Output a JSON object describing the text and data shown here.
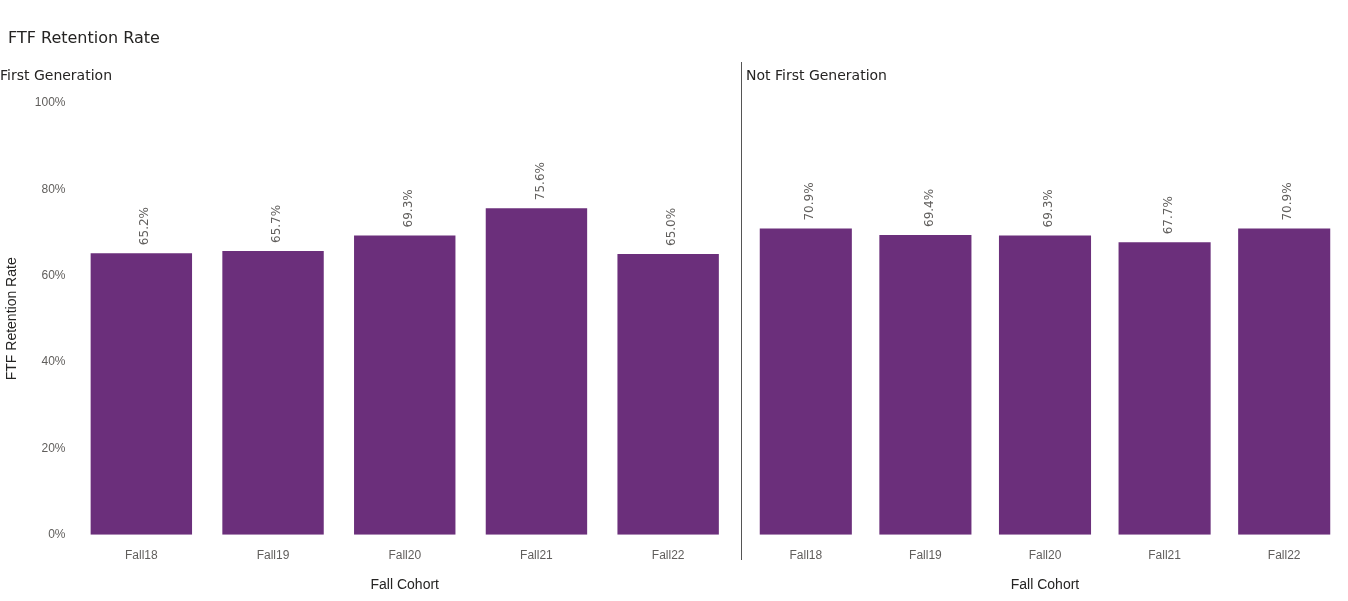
{
  "chart_data": [
    {
      "type": "bar",
      "title": "First Generation",
      "annotations": [
        "FTF Retention Rate"
      ],
      "xlabel": "Fall Cohort",
      "ylabel": "FTF Retention Rate",
      "categories": [
        "Fall18",
        "Fall19",
        "Fall20",
        "Fall21",
        "Fall22"
      ],
      "values": [
        65.2,
        65.7,
        69.3,
        75.6,
        65.0
      ],
      "value_labels": [
        "65.2%",
        "65.7%",
        "69.3%",
        "75.6%",
        "65.0%"
      ],
      "color": "#6b2f7b",
      "ylim": [
        0,
        100
      ],
      "yticks": [
        {
          "value": 0,
          "label": "0%"
        },
        {
          "value": 20,
          "label": "20%"
        },
        {
          "value": 40,
          "label": "40%"
        },
        {
          "value": 60,
          "label": "60%"
        },
        {
          "value": 80,
          "label": "80%"
        },
        {
          "value": 100,
          "label": "100%"
        }
      ]
    },
    {
      "type": "bar",
      "title": "Not First Generation",
      "xlabel": "Fall Cohort",
      "categories": [
        "Fall18",
        "Fall19",
        "Fall20",
        "Fall21",
        "Fall22"
      ],
      "values": [
        70.9,
        69.4,
        69.3,
        67.7,
        70.9
      ],
      "value_labels": [
        "70.9%",
        "69.4%",
        "69.3%",
        "67.7%",
        "70.9%"
      ],
      "color": "#6b2f7b",
      "ylim": [
        0,
        100
      ],
      "tick_labels": "x"
    }
  ]
}
